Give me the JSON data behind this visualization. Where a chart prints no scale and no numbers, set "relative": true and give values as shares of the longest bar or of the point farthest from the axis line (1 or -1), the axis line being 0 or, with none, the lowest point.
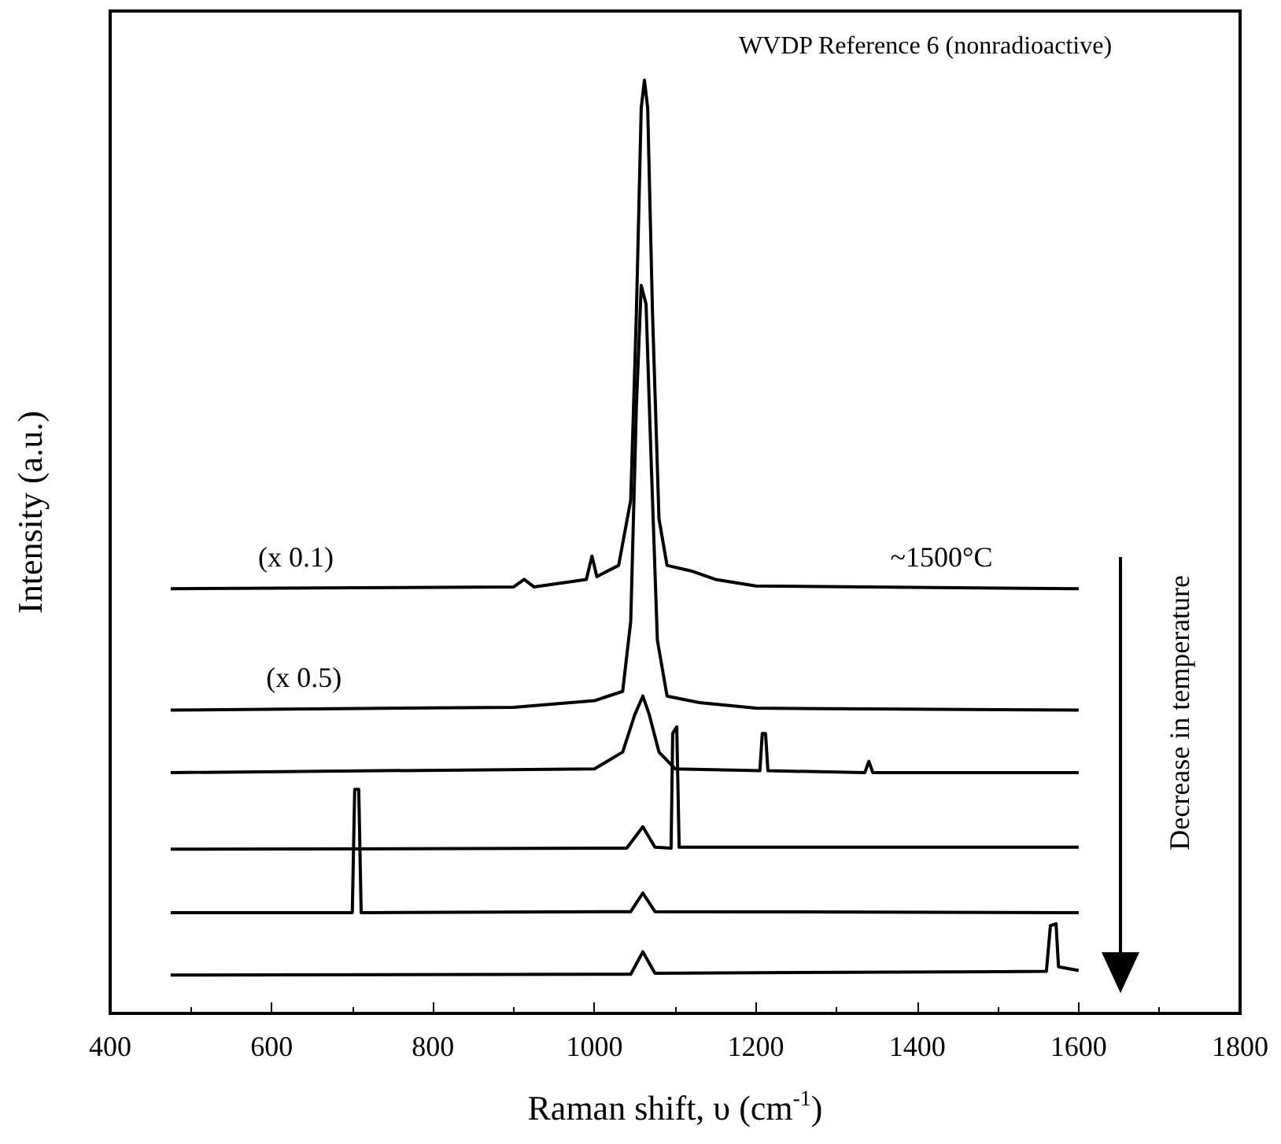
{
  "chart_data": {
    "type": "line",
    "relative": true,
    "xlabel": "Raman shift, υ (cm$^{-1}$)",
    "ylabel": "Intensity (a.u.)",
    "xlim": [
      400,
      1800
    ],
    "xticks": [
      400,
      600,
      800,
      1000,
      1200,
      1400,
      1600,
      1800
    ],
    "grid": false,
    "marker": "none",
    "line_style": "solid",
    "annotations": [
      "WVDP Reference 6 (nonradioactive)",
      "(x 0.1)",
      "(x 0.5)",
      "~1500°C",
      "Decrease in temperature"
    ],
    "series": [
      {
        "color": "#000000",
        "x": [
          475,
          900,
          913,
          925,
          990,
          997,
          1003,
          1030,
          1045,
          1052,
          1058,
          1062,
          1066,
          1072,
          1080,
          1090,
          1120,
          1150,
          1200,
          1600
        ],
        "values": [
          0.455,
          0.457,
          0.465,
          0.457,
          0.465,
          0.49,
          0.468,
          0.48,
          0.55,
          0.75,
          0.97,
          1.0,
          0.97,
          0.75,
          0.53,
          0.48,
          0.474,
          0.465,
          0.458,
          0.455
        ]
      },
      {
        "color": "#000000",
        "x": [
          475,
          900,
          1000,
          1035,
          1045,
          1052,
          1058,
          1064,
          1070,
          1078,
          1090,
          1130,
          1200,
          1600
        ],
        "values": [
          0.325,
          0.328,
          0.335,
          0.345,
          0.42,
          0.65,
          0.78,
          0.76,
          0.6,
          0.4,
          0.34,
          0.333,
          0.327,
          0.325
        ]
      },
      {
        "color": "#000000",
        "x": [
          475,
          1000,
          1035,
          1050,
          1060,
          1068,
          1080,
          1100,
          1205,
          1208,
          1212,
          1215,
          1335,
          1340,
          1345,
          1600
        ],
        "values": [
          0.258,
          0.262,
          0.28,
          0.32,
          0.34,
          0.32,
          0.28,
          0.262,
          0.26,
          0.3,
          0.3,
          0.26,
          0.258,
          0.27,
          0.258,
          0.258
        ]
      },
      {
        "color": "#000000",
        "x": [
          475,
          1040,
          1060,
          1075,
          1095,
          1097,
          1102,
          1105,
          1600
        ],
        "values": [
          0.176,
          0.177,
          0.2,
          0.178,
          0.177,
          0.3,
          0.307,
          0.178,
          0.178
        ]
      },
      {
        "color": "#000000",
        "x": [
          475,
          700,
          703,
          708,
          711,
          1045,
          1060,
          1075,
          1600
        ],
        "values": [
          0.108,
          0.108,
          0.24,
          0.24,
          0.108,
          0.109,
          0.129,
          0.109,
          0.108
        ]
      },
      {
        "color": "#000000",
        "x": [
          475,
          1045,
          1060,
          1075,
          1560,
          1565,
          1572,
          1575,
          1600
        ],
        "values": [
          0.041,
          0.042,
          0.066,
          0.043,
          0.045,
          0.094,
          0.096,
          0.05,
          0.046
        ]
      }
    ]
  }
}
